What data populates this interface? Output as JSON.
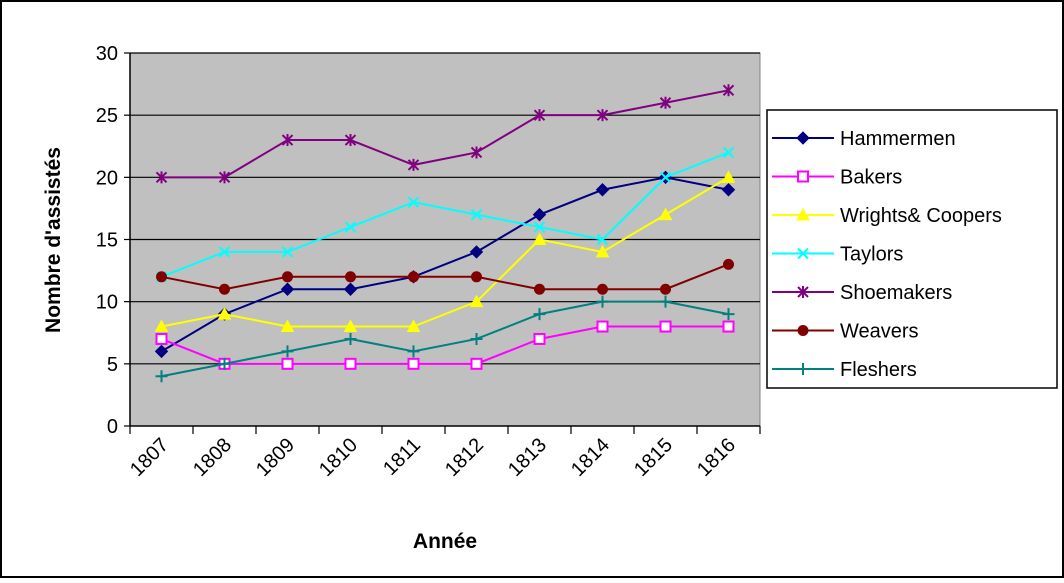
{
  "chart_data": {
    "type": "line",
    "title": "",
    "xlabel": "Année",
    "ylabel": "Nombre d'assistés",
    "ylim": [
      0,
      30
    ],
    "ytick_step": 5,
    "y_ticks": [
      "0",
      "5",
      "10",
      "15",
      "20",
      "25",
      "30"
    ],
    "categories": [
      "1807",
      "1808",
      "1809",
      "1810",
      "1811",
      "1812",
      "1813",
      "1814",
      "1815",
      "1816"
    ],
    "grid": true,
    "plot_background": "#c0c0c0",
    "legend_position": "right",
    "series": [
      {
        "name": "Hammermen",
        "color": "#000080",
        "marker": "diamond",
        "values": [
          6,
          9,
          11,
          11,
          12,
          14,
          17,
          19,
          20,
          19
        ]
      },
      {
        "name": "Bakers",
        "color": "#ff00ff",
        "marker": "square",
        "values": [
          7,
          5,
          5,
          5,
          5,
          5,
          7,
          8,
          8,
          8
        ]
      },
      {
        "name": "Wrights& Coopers",
        "color": "#ffff00",
        "marker": "triangle",
        "values": [
          8,
          9,
          8,
          8,
          8,
          10,
          15,
          14,
          17,
          20
        ]
      },
      {
        "name": "Taylors",
        "color": "#00ffff",
        "marker": "x",
        "values": [
          12,
          14,
          14,
          16,
          18,
          17,
          16,
          15,
          20,
          22
        ]
      },
      {
        "name": "Shoemakers",
        "color": "#800080",
        "marker": "asterisk",
        "values": [
          20,
          20,
          23,
          23,
          21,
          22,
          25,
          25,
          26,
          27
        ]
      },
      {
        "name": "Weavers",
        "color": "#800000",
        "marker": "circle",
        "values": [
          12,
          11,
          12,
          12,
          12,
          12,
          11,
          11,
          11,
          13
        ]
      },
      {
        "name": "Fleshers",
        "color": "#008080",
        "marker": "plus",
        "values": [
          4,
          5,
          6,
          7,
          6,
          7,
          9,
          10,
          10,
          9
        ]
      }
    ]
  }
}
